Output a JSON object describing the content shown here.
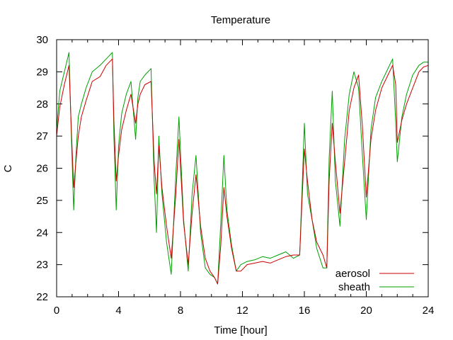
{
  "chart_data": {
    "type": "line",
    "title": "Temperature",
    "xlabel": "Time [hour]",
    "ylabel": "C",
    "xlim": [
      0,
      24
    ],
    "ylim": [
      22,
      30
    ],
    "xticks": [
      0,
      4,
      8,
      12,
      16,
      20,
      24
    ],
    "xtick_labels": [
      "0",
      "4",
      "8",
      "12",
      "16",
      "20",
      "24"
    ],
    "yticks": [
      22,
      23,
      24,
      25,
      26,
      27,
      28,
      29,
      30
    ],
    "ytick_labels": [
      "22",
      "23",
      "24",
      "25",
      "26",
      "27",
      "28",
      "29",
      "30"
    ],
    "grid": false,
    "legend_position": "bottom-right",
    "series": [
      {
        "name": "aerosol",
        "color": "#cc0000",
        "x": [
          0,
          0.2,
          0.5,
          0.8,
          0.95,
          1.1,
          1.25,
          1.4,
          1.6,
          1.9,
          2.3,
          2.8,
          3.2,
          3.6,
          3.7,
          3.85,
          4.0,
          4.2,
          4.5,
          4.8,
          5.1,
          5.25,
          5.4,
          5.7,
          6.1,
          6.3,
          6.45,
          6.6,
          6.8,
          7.1,
          7.4,
          7.7,
          7.9,
          8.2,
          8.5,
          8.75,
          9.0,
          9.3,
          9.6,
          9.9,
          10.2,
          10.4,
          10.6,
          10.8,
          11.0,
          11.3,
          11.6,
          11.9,
          12.3,
          12.8,
          13.3,
          13.8,
          14.3,
          14.8,
          15.3,
          15.7,
          15.85,
          16.0,
          16.2,
          16.5,
          16.8,
          17.2,
          17.45,
          17.6,
          17.8,
          18.0,
          18.3,
          18.6,
          18.9,
          19.2,
          19.5,
          19.75,
          20.0,
          20.3,
          20.6,
          21.0,
          21.4,
          21.7,
          21.9,
          22.0,
          22.3,
          22.6,
          23.0,
          23.4,
          23.7,
          24.0
        ],
        "y": [
          27.0,
          27.9,
          28.6,
          29.2,
          27.2,
          25.4,
          26.2,
          27.0,
          27.6,
          28.1,
          28.7,
          28.85,
          29.2,
          29.4,
          27.5,
          25.6,
          26.4,
          27.2,
          27.8,
          28.3,
          27.4,
          28.0,
          28.3,
          28.6,
          28.7,
          26.2,
          25.2,
          26.7,
          25.4,
          24.2,
          23.2,
          25.2,
          26.9,
          24.3,
          23.0,
          24.6,
          25.8,
          24.2,
          23.2,
          22.8,
          22.6,
          22.4,
          23.6,
          25.4,
          24.5,
          23.5,
          22.8,
          22.8,
          23.0,
          23.05,
          23.1,
          23.05,
          23.15,
          23.25,
          23.3,
          23.3,
          25.0,
          26.6,
          25.6,
          24.4,
          23.7,
          23.3,
          22.9,
          25.6,
          27.4,
          26.2,
          24.6,
          26.2,
          27.8,
          28.5,
          28.9,
          27.3,
          25.1,
          26.9,
          27.8,
          28.5,
          28.9,
          29.2,
          28.6,
          26.8,
          27.5,
          28.0,
          28.5,
          29.0,
          29.15,
          29.2
        ]
      },
      {
        "name": "sheath",
        "color": "#00a000",
        "x": [
          0,
          0.2,
          0.5,
          0.8,
          0.95,
          1.1,
          1.25,
          1.4,
          1.6,
          1.9,
          2.3,
          2.8,
          3.2,
          3.6,
          3.7,
          3.85,
          4.0,
          4.2,
          4.5,
          4.8,
          5.1,
          5.25,
          5.4,
          5.7,
          6.1,
          6.3,
          6.45,
          6.6,
          6.8,
          7.1,
          7.4,
          7.7,
          7.9,
          8.2,
          8.5,
          8.75,
          9.0,
          9.3,
          9.6,
          9.9,
          10.2,
          10.4,
          10.6,
          10.8,
          11.0,
          11.3,
          11.6,
          11.9,
          12.3,
          12.8,
          13.3,
          13.8,
          14.3,
          14.8,
          15.3,
          15.7,
          15.85,
          16.0,
          16.2,
          16.5,
          16.8,
          17.2,
          17.45,
          17.6,
          17.8,
          18.0,
          18.3,
          18.6,
          18.9,
          19.2,
          19.5,
          19.75,
          20.0,
          20.3,
          20.6,
          21.0,
          21.4,
          21.7,
          21.9,
          22.0,
          22.3,
          22.6,
          23.0,
          23.4,
          23.7,
          24.0
        ],
        "y": [
          27.2,
          28.4,
          29.0,
          29.6,
          27.0,
          24.7,
          26.4,
          27.6,
          28.0,
          28.5,
          29.0,
          29.2,
          29.4,
          29.6,
          27.0,
          24.7,
          26.7,
          27.7,
          28.3,
          28.7,
          26.9,
          28.2,
          28.7,
          28.9,
          29.1,
          25.6,
          24.0,
          27.0,
          25.2,
          23.7,
          22.7,
          25.8,
          27.6,
          24.4,
          22.8,
          25.2,
          26.4,
          24.0,
          22.9,
          22.7,
          22.6,
          22.4,
          24.3,
          26.4,
          24.7,
          23.6,
          22.8,
          23.0,
          23.1,
          23.15,
          23.25,
          23.2,
          23.3,
          23.4,
          23.2,
          23.3,
          25.3,
          27.4,
          25.2,
          24.4,
          23.5,
          22.9,
          22.9,
          26.3,
          28.4,
          25.6,
          24.2,
          26.9,
          28.3,
          29.0,
          28.5,
          26.4,
          24.4,
          27.2,
          28.2,
          28.7,
          29.1,
          29.4,
          27.4,
          26.2,
          27.6,
          28.3,
          28.9,
          29.2,
          29.3,
          29.3
        ]
      }
    ]
  }
}
